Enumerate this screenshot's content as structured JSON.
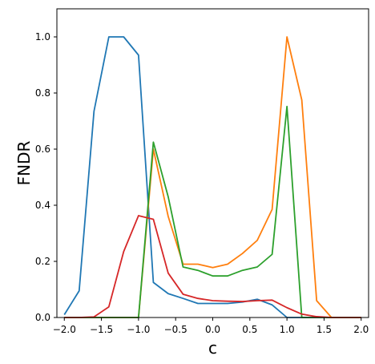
{
  "chart_data": {
    "type": "line",
    "title": "",
    "xlabel": "c",
    "ylabel": "FNDR",
    "xlim": [
      -2.1,
      2.1
    ],
    "ylim": [
      0,
      1.1
    ],
    "grid": false,
    "legend": "none",
    "x": [
      -2.0,
      -1.8,
      -1.6,
      -1.4,
      -1.2,
      -1.0,
      -0.8,
      -0.6,
      -0.4,
      -0.2,
      0.0,
      0.2,
      0.4,
      0.6,
      0.8,
      1.0,
      1.2,
      1.4,
      1.6,
      1.8,
      2.0
    ],
    "xticks": [
      "−2.0",
      "−1.5",
      "−1.0",
      "−0.5",
      "0.0",
      "0.5",
      "1.0",
      "1.5",
      "2.0"
    ],
    "xtick_values": [
      -2.0,
      -1.5,
      -1.0,
      -0.5,
      0.0,
      0.5,
      1.0,
      1.5,
      2.0
    ],
    "yticks": [
      "0.0",
      "0.2",
      "0.4",
      "0.6",
      "0.8",
      "1.0"
    ],
    "ytick_values": [
      0.0,
      0.2,
      0.4,
      0.6,
      0.8,
      1.0
    ],
    "series": [
      {
        "color": "#1f77b4",
        "values": [
          0.01,
          0.095,
          0.735,
          1.0,
          1.0,
          0.935,
          0.125,
          0.085,
          0.068,
          0.05,
          0.05,
          0.05,
          0.055,
          0.065,
          0.045,
          0.0,
          0.0,
          0.0,
          0.0,
          0.0,
          0.0
        ]
      },
      {
        "color": "#ff7f0e",
        "values": [
          0.0,
          0.0,
          0.0,
          0.0,
          0.0,
          0.0,
          0.6,
          0.36,
          0.19,
          0.19,
          0.178,
          0.19,
          0.228,
          0.275,
          0.385,
          1.0,
          0.775,
          0.06,
          0.0,
          0.0,
          0.0
        ]
      },
      {
        "color": "#2ca02c",
        "values": [
          0.0,
          0.0,
          0.0,
          0.0,
          0.0,
          0.0,
          0.625,
          0.43,
          0.18,
          0.168,
          0.148,
          0.148,
          0.168,
          0.18,
          0.225,
          0.752,
          0.0,
          0.0,
          0.0,
          0.0,
          0.0
        ]
      },
      {
        "color": "#d62728",
        "values": [
          0.0,
          0.0,
          0.002,
          0.038,
          0.235,
          0.363,
          0.35,
          0.158,
          0.083,
          0.068,
          0.06,
          0.058,
          0.057,
          0.06,
          0.062,
          0.035,
          0.012,
          0.003,
          0.0,
          0.0,
          0.0
        ]
      }
    ]
  }
}
